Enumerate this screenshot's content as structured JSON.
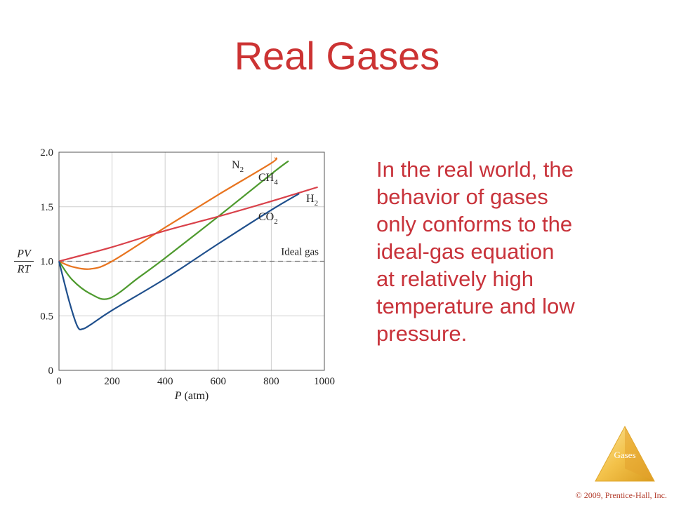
{
  "slide": {
    "title": "Real Gases",
    "body_lines": [
      "In the real world, the",
      "behavior of gases",
      "only conforms to the",
      "ideal-gas equation",
      "at relatively high",
      "temperature and low",
      "pressure."
    ],
    "badge_label": "Gases",
    "copyright": "© 2009, Prentice-Hall, Inc."
  },
  "colors": {
    "title": "#cc3333",
    "body": "#c8323a",
    "N2": "#e8741f",
    "CH4": "#4e9a2e",
    "H2": "#d9414a",
    "CO2": "#1f4f8c",
    "badge": "#f3c24a"
  },
  "chart_data": {
    "type": "line",
    "xlabel": "P (atm)",
    "ylabel_num": "PV",
    "ylabel_den": "RT",
    "xlim": [
      0,
      1000
    ],
    "ylim": [
      0,
      2.0
    ],
    "xticks": [
      0,
      200,
      400,
      600,
      800,
      1000
    ],
    "yticks": [
      0,
      0.5,
      1.0,
      1.5,
      2.0
    ],
    "ytick_labels": [
      "0",
      "0.5",
      "1.0",
      "1.5",
      "2.0"
    ],
    "grid": true,
    "reference_line": {
      "name": "Ideal gas",
      "y": 1.0,
      "style": "dashed"
    },
    "series": [
      {
        "name": "N2",
        "label_main": "N",
        "label_sub": "2",
        "color": "#e8741f",
        "points": [
          [
            0,
            1.0
          ],
          [
            50,
            0.95
          ],
          [
            120,
            0.93
          ],
          [
            200,
            1.0
          ],
          [
            400,
            1.31
          ],
          [
            600,
            1.61
          ],
          [
            800,
            1.9
          ],
          [
            815,
            1.95
          ]
        ]
      },
      {
        "name": "CH4",
        "label_main": "CH",
        "label_sub": "4",
        "color": "#4e9a2e",
        "points": [
          [
            0,
            1.0
          ],
          [
            50,
            0.83
          ],
          [
            120,
            0.7
          ],
          [
            190,
            0.66
          ],
          [
            300,
            0.85
          ],
          [
            400,
            1.03
          ],
          [
            600,
            1.41
          ],
          [
            800,
            1.8
          ],
          [
            865,
            1.92
          ]
        ]
      },
      {
        "name": "H2",
        "label_main": "H",
        "label_sub": "2",
        "color": "#d9414a",
        "points": [
          [
            0,
            1.0
          ],
          [
            200,
            1.13
          ],
          [
            400,
            1.28
          ],
          [
            600,
            1.41
          ],
          [
            800,
            1.55
          ],
          [
            975,
            1.68
          ]
        ]
      },
      {
        "name": "CO2",
        "label_main": "CO",
        "label_sub": "2",
        "color": "#1f4f8c",
        "points": [
          [
            0,
            1.0
          ],
          [
            40,
            0.62
          ],
          [
            70,
            0.4
          ],
          [
            90,
            0.38
          ],
          [
            120,
            0.42
          ],
          [
            200,
            0.55
          ],
          [
            400,
            0.84
          ],
          [
            600,
            1.16
          ],
          [
            800,
            1.47
          ],
          [
            905,
            1.62
          ]
        ]
      }
    ]
  }
}
